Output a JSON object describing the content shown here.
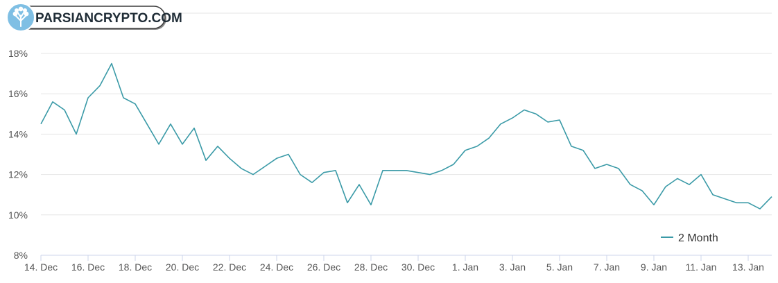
{
  "brand": {
    "name": "PARSIANCRYPTO.COM",
    "icon": "tree-logo-icon",
    "color": "#7fbfe4"
  },
  "chart_data": {
    "type": "line",
    "title": "",
    "xlabel": "",
    "ylabel": "",
    "ylim": [
      8,
      18
    ],
    "y_ticks": [
      8,
      10,
      12,
      14,
      16,
      18
    ],
    "y_tick_labels": [
      "8%",
      "10%",
      "12%",
      "14%",
      "16%",
      "18%"
    ],
    "x_range": [
      "2022-12-14",
      "2023-01-14"
    ],
    "x_ticks": [
      "2022-12-14",
      "2022-12-16",
      "2022-12-18",
      "2022-12-20",
      "2022-12-22",
      "2022-12-24",
      "2022-12-26",
      "2022-12-28",
      "2022-12-30",
      "2023-01-01",
      "2023-01-03",
      "2023-01-05",
      "2023-01-07",
      "2023-01-09",
      "2023-01-11",
      "2023-01-13"
    ],
    "x_tick_labels": [
      "14. Dec",
      "16. Dec",
      "18. Dec",
      "20. Dec",
      "22. Dec",
      "24. Dec",
      "26. Dec",
      "28. Dec",
      "30. Dec",
      "1. Jan",
      "3. Jan",
      "5. Jan",
      "7. Jan",
      "9. Jan",
      "11. Jan",
      "13. Jan"
    ],
    "grid": true,
    "legend": "bottom-right",
    "series": [
      {
        "name": "2 Month",
        "color": "#3a9aa7",
        "x": [
          "2022-12-14",
          "2022-12-14T12:00",
          "2022-12-15",
          "2022-12-15T12:00",
          "2022-12-16",
          "2022-12-16T12:00",
          "2022-12-17",
          "2022-12-17T12:00",
          "2022-12-18",
          "2022-12-18T12:00",
          "2022-12-19",
          "2022-12-19T12:00",
          "2022-12-20",
          "2022-12-20T12:00",
          "2022-12-21",
          "2022-12-21T12:00",
          "2022-12-22",
          "2022-12-22T12:00",
          "2022-12-23",
          "2022-12-23T12:00",
          "2022-12-24",
          "2022-12-24T12:00",
          "2022-12-25",
          "2022-12-25T12:00",
          "2022-12-26",
          "2022-12-26T12:00",
          "2022-12-27",
          "2022-12-27T12:00",
          "2022-12-28",
          "2022-12-28T12:00",
          "2022-12-29",
          "2022-12-29T12:00",
          "2022-12-30",
          "2022-12-30T12:00",
          "2022-12-31",
          "2022-12-31T12:00",
          "2023-01-01",
          "2023-01-01T12:00",
          "2023-01-02",
          "2023-01-02T12:00",
          "2023-01-03",
          "2023-01-03T12:00",
          "2023-01-04",
          "2023-01-04T12:00",
          "2023-01-05",
          "2023-01-05T12:00",
          "2023-01-06",
          "2023-01-06T12:00",
          "2023-01-07",
          "2023-01-07T12:00",
          "2023-01-08",
          "2023-01-08T12:00",
          "2023-01-09",
          "2023-01-09T12:00",
          "2023-01-10",
          "2023-01-10T12:00",
          "2023-01-11",
          "2023-01-11T12:00",
          "2023-01-12",
          "2023-01-12T12:00",
          "2023-01-13",
          "2023-01-13T12:00",
          "2023-01-14"
        ],
        "values": [
          14.5,
          15.6,
          15.2,
          14.0,
          15.8,
          16.4,
          17.5,
          15.8,
          15.5,
          14.5,
          13.5,
          14.5,
          13.5,
          14.3,
          12.7,
          13.4,
          12.8,
          12.3,
          12.0,
          12.4,
          12.8,
          13.0,
          12.0,
          11.6,
          12.1,
          12.2,
          10.6,
          11.5,
          10.5,
          12.2,
          12.2,
          12.2,
          12.1,
          12.0,
          12.2,
          12.5,
          13.2,
          13.4,
          13.8,
          14.5,
          14.8,
          15.2,
          15.0,
          14.6,
          14.7,
          13.4,
          13.2,
          12.3,
          12.5,
          12.3,
          11.5,
          11.2,
          10.5,
          11.4,
          11.8,
          11.5,
          12.0,
          11.0,
          10.8,
          10.6,
          10.6,
          10.3,
          10.9
        ]
      }
    ]
  }
}
